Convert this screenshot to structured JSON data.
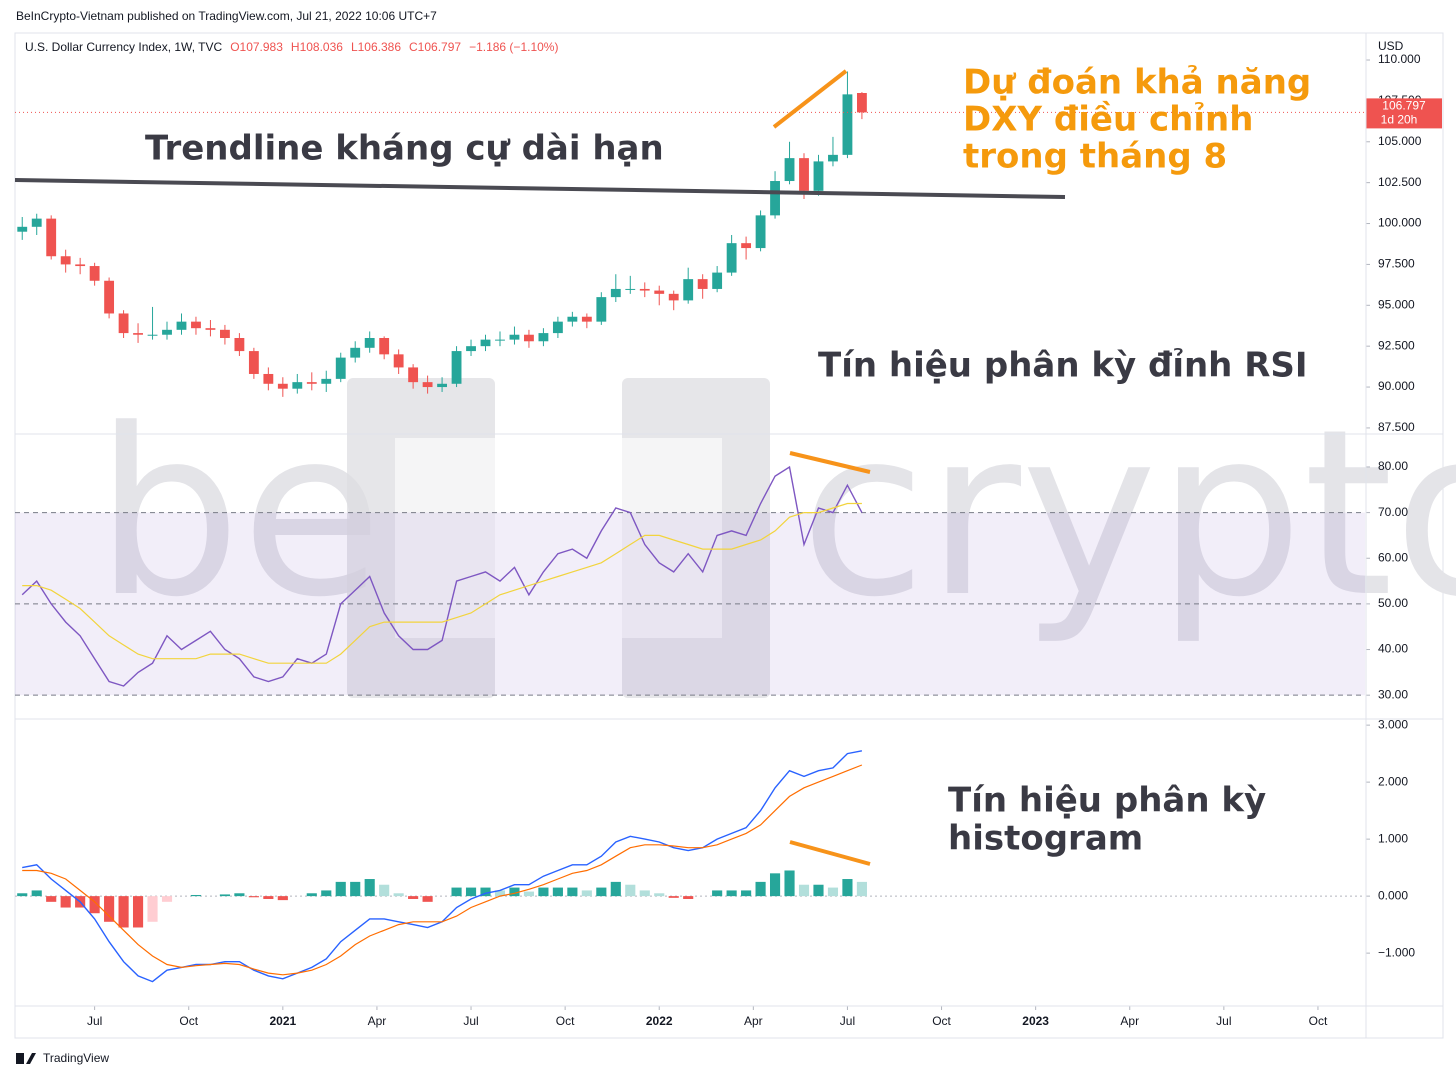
{
  "header": "BeInCrypto-Vietnam published on TradingView.com, Jul 21, 2022 10:06 UTC+7",
  "footer": "TradingView",
  "watermark": [
    "be",
    "crypto"
  ],
  "annotations": {
    "trendline": "Trendline kháng cự dài hạn",
    "forecast": [
      "Dự đoán khả năng",
      "DXY điều chỉnh",
      "trong tháng 8"
    ],
    "rsi_divergence": "Tín hiệu phân kỳ đỉnh RSI",
    "histogram_divergence": [
      "Tín hiệu phân kỳ",
      "histogram"
    ]
  },
  "chart_data": [
    {
      "type": "candlestick",
      "title": "U.S. Dollar Currency Index, 1W, TVC",
      "legend_values": [
        "O107.983",
        "H108.036",
        "L106.386",
        "C106.797",
        "−1.186 (−1.10%)"
      ],
      "currency": "USD",
      "last_price_label": "106.797",
      "countdown": "1d 20h",
      "up_color": "#26a69a",
      "down_color": "#ef5350",
      "xlim": [
        0,
        186.5
      ],
      "x": [
        1,
        3,
        5,
        7,
        9,
        11,
        13,
        15,
        17,
        19,
        21,
        23,
        25,
        27,
        29,
        31,
        33,
        35,
        37,
        39,
        41,
        43,
        45,
        47,
        49,
        51,
        53,
        55,
        57,
        59,
        61,
        63,
        65,
        67,
        69,
        71,
        73,
        75,
        77,
        79,
        81,
        83,
        85,
        87,
        89,
        91,
        93,
        95,
        97,
        99,
        101,
        103,
        105,
        107,
        109,
        111,
        113,
        115,
        117
      ],
      "open": [
        99.5,
        99.8,
        100.3,
        98.0,
        97.5,
        97.4,
        96.5,
        94.5,
        93.3,
        93.2,
        93.2,
        93.5,
        94.0,
        93.6,
        93.5,
        93.0,
        92.2,
        90.8,
        90.2,
        89.9,
        90.3,
        90.2,
        90.5,
        91.8,
        92.4,
        93.0,
        92.0,
        91.2,
        90.3,
        90.0,
        90.2,
        92.2,
        92.5,
        92.9,
        92.9,
        93.2,
        92.8,
        93.3,
        94.0,
        94.3,
        94.0,
        95.5,
        96.0,
        96.0,
        95.9,
        95.7,
        95.3,
        96.6,
        96.0,
        97.0,
        98.8,
        98.5,
        100.5,
        102.6,
        104.0,
        102.0,
        103.8,
        104.2,
        107.983
      ],
      "high": [
        100.4,
        100.6,
        100.5,
        98.4,
        97.9,
        97.6,
        96.7,
        94.7,
        93.9,
        94.9,
        94.0,
        94.5,
        94.3,
        94.1,
        93.8,
        93.3,
        92.4,
        91.2,
        90.6,
        90.8,
        90.9,
        91.0,
        92.1,
        92.8,
        93.4,
        93.1,
        92.3,
        91.4,
        90.7,
        90.6,
        92.5,
        92.9,
        93.2,
        93.4,
        93.7,
        93.5,
        93.6,
        94.3,
        94.6,
        94.5,
        95.8,
        96.9,
        96.8,
        96.4,
        96.2,
        95.9,
        97.3,
        96.9,
        97.4,
        99.3,
        99.2,
        100.8,
        103.2,
        105.0,
        104.3,
        104.2,
        105.3,
        109.3,
        108.036
      ],
      "low": [
        99.0,
        99.3,
        97.8,
        97.0,
        96.9,
        96.2,
        94.2,
        93.0,
        92.7,
        92.9,
        92.9,
        93.2,
        93.2,
        93.1,
        92.6,
        91.9,
        90.5,
        89.8,
        89.4,
        89.6,
        89.8,
        89.7,
        90.3,
        91.5,
        92.1,
        91.7,
        90.8,
        89.9,
        89.6,
        89.7,
        90.0,
        91.9,
        92.2,
        92.5,
        92.6,
        92.4,
        92.5,
        93.0,
        93.7,
        93.6,
        93.8,
        95.2,
        95.7,
        95.5,
        95.0,
        94.7,
        95.1,
        95.4,
        95.8,
        96.8,
        97.8,
        98.3,
        100.3,
        102.4,
        101.5,
        101.7,
        103.5,
        104.0,
        106.386
      ],
      "close": [
        99.8,
        100.3,
        98.0,
        97.5,
        97.4,
        96.5,
        94.5,
        93.3,
        93.2,
        93.2,
        93.5,
        94.0,
        93.6,
        93.5,
        93.0,
        92.2,
        90.8,
        90.2,
        89.9,
        90.3,
        90.2,
        90.5,
        91.8,
        92.4,
        93.0,
        92.0,
        91.2,
        90.3,
        90.0,
        90.2,
        92.2,
        92.5,
        92.9,
        92.9,
        93.2,
        92.8,
        93.3,
        94.0,
        94.3,
        94.0,
        95.5,
        96.0,
        96.0,
        95.9,
        95.7,
        95.3,
        96.6,
        96.0,
        97.0,
        98.8,
        98.5,
        100.5,
        102.6,
        104.0,
        102.0,
        103.8,
        104.2,
        107.9,
        106.797
      ],
      "ylim": [
        87.19,
        111.53
      ],
      "yticks": [
        {
          "value": 110,
          "label": "110.000"
        },
        {
          "value": 107.5,
          "label": "107.500"
        },
        {
          "value": 105,
          "label": "105.000"
        },
        {
          "value": 102.5,
          "label": "102.500"
        },
        {
          "value": 100,
          "label": "100.000"
        },
        {
          "value": 97.5,
          "label": "97.500"
        },
        {
          "value": 95,
          "label": "95.000"
        },
        {
          "value": 92.5,
          "label": "92.500"
        },
        {
          "value": 90,
          "label": "90.000"
        },
        {
          "value": 87.5,
          "label": "87.500"
        }
      ]
    },
    {
      "type": "rsi",
      "xlim": [
        0,
        186.5
      ],
      "x": [
        1,
        3,
        5,
        7,
        9,
        11,
        13,
        15,
        17,
        19,
        21,
        23,
        25,
        27,
        29,
        31,
        33,
        35,
        37,
        39,
        41,
        43,
        45,
        47,
        49,
        51,
        53,
        55,
        57,
        59,
        61,
        63,
        65,
        67,
        69,
        71,
        73,
        75,
        77,
        79,
        81,
        83,
        85,
        87,
        89,
        91,
        93,
        95,
        97,
        99,
        101,
        103,
        105,
        107,
        109,
        111,
        113,
        115,
        117
      ],
      "series": [
        {
          "color": "#7e57c2",
          "values": [
            52,
            55,
            50,
            46,
            43,
            38,
            33,
            32,
            35,
            37,
            43,
            40,
            42,
            44,
            40,
            38,
            34,
            33,
            34,
            38,
            37,
            39,
            50,
            53,
            56,
            48,
            43,
            40,
            40,
            42,
            55,
            56,
            57,
            55,
            58,
            52,
            57,
            61,
            62,
            60,
            66,
            71,
            70,
            63,
            59,
            57,
            61,
            57,
            65,
            66,
            65,
            72,
            78,
            80,
            63,
            71,
            70,
            76,
            70
          ]
        },
        {
          "color": "#f2d43d",
          "values": [
            54,
            54,
            53,
            51,
            49,
            46,
            43,
            41,
            39,
            38,
            38,
            38,
            38,
            39,
            39,
            39,
            38,
            37,
            37,
            37,
            37,
            37,
            39,
            42,
            45,
            46,
            46,
            46,
            46,
            46,
            47,
            48,
            50,
            52,
            53,
            54,
            55,
            56,
            57,
            58,
            59,
            61,
            63,
            65,
            65,
            64,
            63,
            62,
            62,
            62,
            63,
            64,
            66,
            69,
            70,
            70,
            71,
            72,
            72
          ]
        }
      ],
      "levels": [
        30,
        50,
        70
      ],
      "band_color": "#7e57c2",
      "ylim": [
        25,
        87
      ],
      "yticks": [
        {
          "value": 80,
          "label": "80.00"
        },
        {
          "value": 70,
          "label": "70.00"
        },
        {
          "value": 60,
          "label": "60.00"
        },
        {
          "value": 50,
          "label": "50.00"
        },
        {
          "value": 40,
          "label": "40.00"
        },
        {
          "value": 30,
          "label": "30.00"
        }
      ]
    },
    {
      "type": "macd",
      "xlim": [
        0,
        186.5
      ],
      "x": [
        1,
        3,
        5,
        7,
        9,
        11,
        13,
        15,
        17,
        19,
        21,
        23,
        25,
        27,
        29,
        31,
        33,
        35,
        37,
        39,
        41,
        43,
        45,
        47,
        49,
        51,
        53,
        55,
        57,
        59,
        61,
        63,
        65,
        67,
        69,
        71,
        73,
        75,
        77,
        79,
        81,
        83,
        85,
        87,
        89,
        91,
        93,
        95,
        97,
        99,
        101,
        103,
        105,
        107,
        109,
        111,
        113,
        115,
        117
      ],
      "histogram": [
        0.05,
        0.1,
        -0.1,
        -0.2,
        -0.2,
        -0.3,
        -0.45,
        -0.55,
        -0.55,
        -0.45,
        -0.1,
        0,
        0.02,
        0,
        0.03,
        0.05,
        -0.02,
        -0.05,
        -0.07,
        0,
        0.05,
        0.1,
        0.25,
        0.25,
        0.3,
        0.2,
        0.05,
        -0.05,
        -0.1,
        0,
        0.15,
        0.15,
        0.15,
        0.1,
        0.15,
        0.08,
        0.15,
        0.15,
        0.15,
        0.1,
        0.15,
        0.25,
        0.2,
        0.1,
        0.05,
        -0.03,
        -0.05,
        0,
        0.1,
        0.1,
        0.1,
        0.25,
        0.4,
        0.45,
        0.2,
        0.2,
        0.15,
        0.3,
        0.25
      ],
      "histogram_colors": [
        "#26a69a",
        "#b2dfdb",
        "#ef5350",
        "#ffcdd2"
      ],
      "series": [
        {
          "color": "#2962ff",
          "values": [
            0.5,
            0.55,
            0.3,
            0.1,
            -0.1,
            -0.4,
            -0.8,
            -1.15,
            -1.4,
            -1.5,
            -1.3,
            -1.25,
            -1.2,
            -1.2,
            -1.15,
            -1.15,
            -1.3,
            -1.4,
            -1.45,
            -1.35,
            -1.25,
            -1.1,
            -0.8,
            -0.6,
            -0.4,
            -0.4,
            -0.45,
            -0.5,
            -0.55,
            -0.45,
            -0.2,
            -0.05,
            0.05,
            0.1,
            0.2,
            0.2,
            0.35,
            0.45,
            0.55,
            0.55,
            0.7,
            0.95,
            1.05,
            1.0,
            0.95,
            0.85,
            0.8,
            0.85,
            1.0,
            1.1,
            1.2,
            1.5,
            1.9,
            2.2,
            2.1,
            2.2,
            2.25,
            2.5,
            2.55
          ]
        },
        {
          "color": "#ff6d00",
          "values": [
            0.45,
            0.45,
            0.4,
            0.3,
            0.1,
            -0.1,
            -0.35,
            -0.6,
            -0.85,
            -1.05,
            -1.2,
            -1.25,
            -1.22,
            -1.2,
            -1.18,
            -1.2,
            -1.28,
            -1.35,
            -1.38,
            -1.35,
            -1.3,
            -1.2,
            -1.05,
            -0.85,
            -0.7,
            -0.6,
            -0.5,
            -0.45,
            -0.45,
            -0.45,
            -0.35,
            -0.2,
            -0.1,
            0,
            0.05,
            0.12,
            0.2,
            0.3,
            0.4,
            0.45,
            0.55,
            0.7,
            0.85,
            0.9,
            0.9,
            0.88,
            0.85,
            0.85,
            0.9,
            1.0,
            1.1,
            1.25,
            1.5,
            1.75,
            1.9,
            2.0,
            2.1,
            2.2,
            2.3
          ]
        }
      ],
      "zero_line": 0,
      "ylim": [
        -1.91,
        3.09
      ],
      "yticks": [
        {
          "value": 3,
          "label": "3.000"
        },
        {
          "value": 2,
          "label": "2.000"
        },
        {
          "value": 1,
          "label": "1.000"
        },
        {
          "value": 0,
          "label": "0.000"
        },
        {
          "value": -1,
          "label": "−1.000"
        }
      ],
      "xticks": [
        {
          "value": 11,
          "label": "Jul"
        },
        {
          "value": 24,
          "label": "Oct"
        },
        {
          "value": 37,
          "label": "2021"
        },
        {
          "value": 50,
          "label": "Apr"
        },
        {
          "value": 63,
          "label": "Jul"
        },
        {
          "value": 76,
          "label": "Oct"
        },
        {
          "value": 89,
          "label": "2022"
        },
        {
          "value": 102,
          "label": "Apr"
        },
        {
          "value": 115,
          "label": "Jul"
        },
        {
          "value": 128,
          "label": "Oct"
        },
        {
          "value": 141,
          "label": "2023"
        },
        {
          "value": 154,
          "label": "Apr"
        },
        {
          "value": 167,
          "label": "Jul"
        },
        {
          "value": 180,
          "label": "Oct"
        }
      ]
    }
  ]
}
